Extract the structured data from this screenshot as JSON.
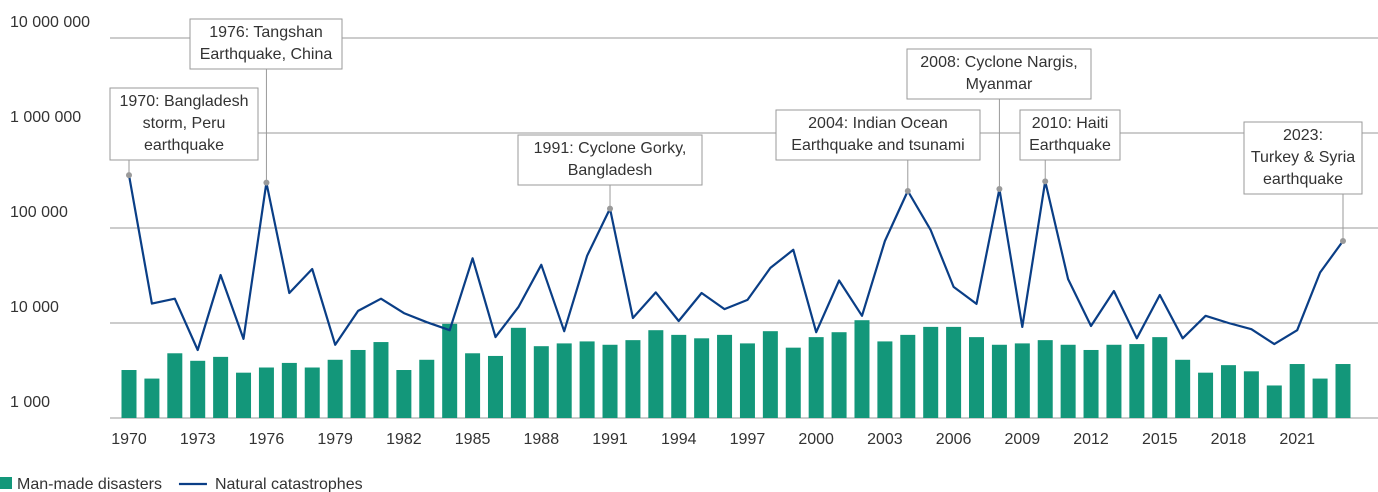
{
  "chart_data": {
    "type": "bar-line",
    "yscale": "log",
    "ylim": [
      1000,
      10000000
    ],
    "yticks": [
      {
        "value": 1000,
        "label": "1 000"
      },
      {
        "value": 10000,
        "label": "10 000"
      },
      {
        "value": 100000,
        "label": "100 000"
      },
      {
        "value": 1000000,
        "label": "1 000 000"
      },
      {
        "value": 10000000,
        "label": "10 000 000"
      }
    ],
    "grid": true,
    "xlim": [
      1969.5,
      2023.5
    ],
    "xticks": [
      1970,
      1973,
      1976,
      1979,
      1982,
      1985,
      1988,
      1991,
      1994,
      1997,
      2000,
      2003,
      2006,
      2009,
      2012,
      2015,
      2018,
      2021
    ],
    "x": [
      1970,
      1971,
      1972,
      1973,
      1974,
      1975,
      1976,
      1977,
      1978,
      1979,
      1980,
      1981,
      1982,
      1983,
      1984,
      1985,
      1986,
      1987,
      1988,
      1989,
      1990,
      1991,
      1992,
      1993,
      1994,
      1995,
      1996,
      1997,
      1998,
      1999,
      2000,
      2001,
      2002,
      2003,
      2004,
      2005,
      2006,
      2007,
      2008,
      2009,
      2010,
      2011,
      2012,
      2013,
      2014,
      2015,
      2016,
      2017,
      2018,
      2019,
      2020,
      2021,
      2022,
      2023
    ],
    "series": [
      {
        "name": "Man-made disasters",
        "kind": "bar",
        "color": "#13977a",
        "values": [
          3200,
          2600,
          4800,
          4000,
          4400,
          3000,
          3400,
          3800,
          3400,
          4100,
          5200,
          6300,
          3200,
          4100,
          9800,
          4800,
          4500,
          8900,
          5700,
          6100,
          6400,
          5900,
          6600,
          8400,
          7500,
          6900,
          7500,
          6100,
          8200,
          5500,
          7100,
          8000,
          10700,
          6400,
          7500,
          9100,
          9100,
          7100,
          5900,
          6100,
          6600,
          5900,
          5200,
          5900,
          6000,
          7100,
          4100,
          3000,
          3600,
          3100,
          2200,
          3700,
          2600,
          3700
        ]
      },
      {
        "name": "Natural catastrophes",
        "kind": "line",
        "color": "#0a3e86",
        "values": [
          360000,
          16000,
          18000,
          5200,
          32000,
          6800,
          300000,
          20700,
          37000,
          5900,
          13400,
          18000,
          12700,
          10200,
          8400,
          48000,
          7100,
          14700,
          41000,
          8200,
          51000,
          160000,
          11300,
          21000,
          10500,
          20700,
          14000,
          17500,
          38000,
          59000,
          8000,
          28000,
          11900,
          73000,
          245000,
          95000,
          24000,
          15900,
          257000,
          9100,
          310000,
          29000,
          9300,
          21700,
          6900,
          19700,
          6900,
          11900,
          10000,
          8600,
          6000,
          8400,
          34000,
          73000
        ]
      }
    ],
    "annotations": [
      {
        "lines": [
          "1970: Bangladesh",
          "storm, Peru",
          "earthquake"
        ]
      },
      {
        "lines": [
          "1976: Tangshan",
          "Earthquake, China"
        ]
      },
      {
        "lines": [
          "1991: Cyclone Gorky,",
          "Bangladesh"
        ]
      },
      {
        "lines": [
          "2004: Indian Ocean",
          "Earthquake and tsunami"
        ]
      },
      {
        "lines": [
          "2008: Cyclone Nargis,",
          "Myanmar"
        ]
      },
      {
        "lines": [
          "2010: Haiti",
          "Earthquake"
        ]
      },
      {
        "lines": [
          "2023:",
          "Turkey & Syria",
          "earthquake"
        ]
      }
    ]
  }
}
